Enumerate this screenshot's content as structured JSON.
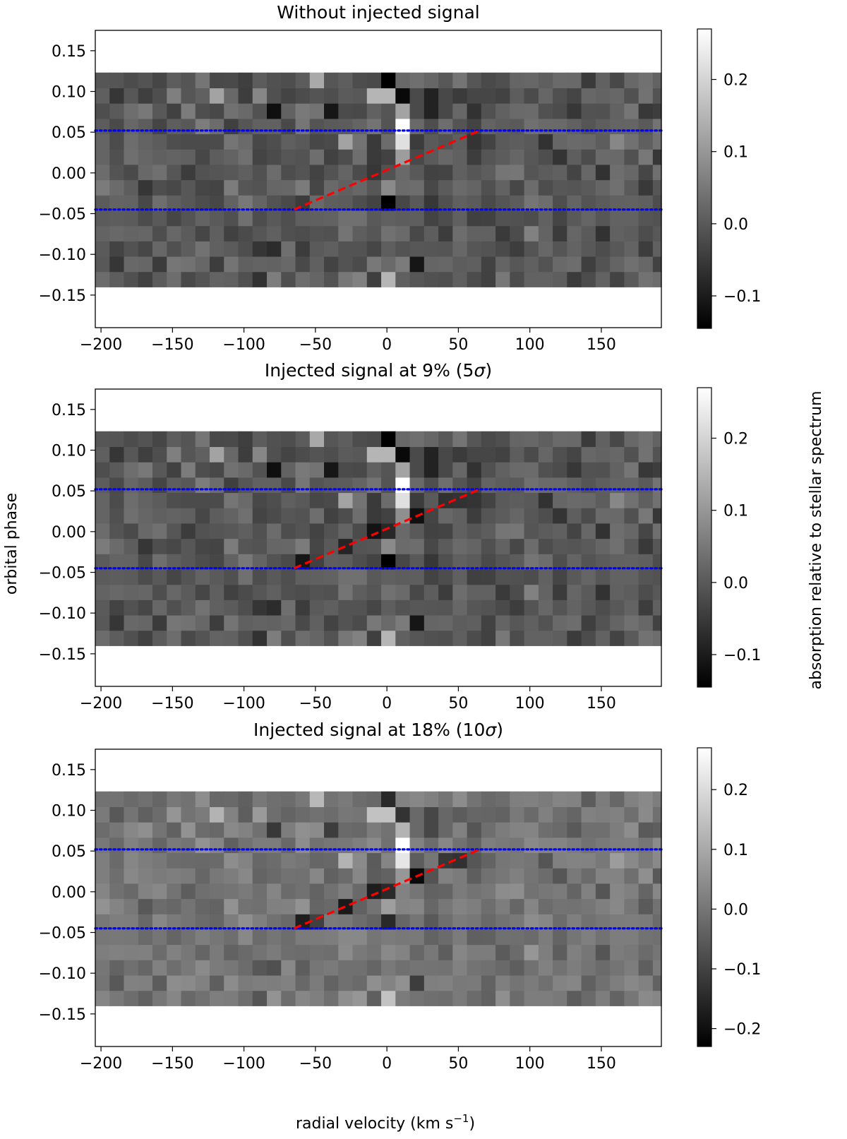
{
  "figure": {
    "ylabel": "orbital phase",
    "xlabel_main": "radial velocity  (km s",
    "xlabel_sup": "−1",
    "xlabel_close": ")",
    "colorbar_label": "absorption relative to stellar spectrum"
  },
  "chart_data": [
    {
      "type": "heatmap",
      "title_pre": "Without injected signal",
      "title_math": "",
      "title_post": "",
      "xlim": [
        -204,
        192
      ],
      "ylim": [
        -0.19,
        0.175
      ],
      "xticks": [
        -200,
        -150,
        -100,
        -50,
        0,
        50,
        100,
        150
      ],
      "xtick_labels": [
        "−200",
        "−150",
        "−100",
        "−50",
        "0",
        "50",
        "100",
        "150"
      ],
      "yticks": [
        0.15,
        0.1,
        0.05,
        0.0,
        -0.05,
        -0.1,
        -0.15
      ],
      "ytick_labels": [
        "0.15",
        "0.10",
        "0.05",
        "0.00",
        "−0.05",
        "−0.10",
        "−0.15"
      ],
      "grid": false,
      "colormap": "gray",
      "color_range": [
        -0.145,
        0.27
      ],
      "colorbar_ticks": [
        0.2,
        0.1,
        0.0,
        -0.1
      ],
      "colorbar_tick_labels": [
        "0.2",
        "0.1",
        "0.0",
        "−0.1"
      ],
      "injected_strength": 0,
      "phase_window": [
        -0.045,
        0.052
      ],
      "trail_line": {
        "x": [
          -65,
          65
        ],
        "y": [
          -0.045,
          0.052
        ],
        "color": "#ff0000",
        "style": "dashed"
      },
      "window_line_color": "#0000ff"
    },
    {
      "type": "heatmap",
      "title_pre": "Injected signal at 9% (5",
      "title_math": "σ",
      "title_post": ")",
      "xlim": [
        -204,
        192
      ],
      "ylim": [
        -0.19,
        0.175
      ],
      "xticks": [
        -200,
        -150,
        -100,
        -50,
        0,
        50,
        100,
        150
      ],
      "xtick_labels": [
        "−200",
        "−150",
        "−100",
        "−50",
        "0",
        "50",
        "100",
        "150"
      ],
      "yticks": [
        0.15,
        0.1,
        0.05,
        0.0,
        -0.05,
        -0.1,
        -0.15
      ],
      "ytick_labels": [
        "0.15",
        "0.10",
        "0.05",
        "0.00",
        "−0.05",
        "−0.10",
        "−0.15"
      ],
      "grid": false,
      "colormap": "gray",
      "color_range": [
        -0.145,
        0.27
      ],
      "colorbar_ticks": [
        0.2,
        0.1,
        0.0,
        -0.1
      ],
      "colorbar_tick_labels": [
        "0.2",
        "0.1",
        "0.0",
        "−0.1"
      ],
      "injected_strength": 0.09,
      "phase_window": [
        -0.045,
        0.052
      ],
      "trail_line": {
        "x": [
          -65,
          65
        ],
        "y": [
          -0.045,
          0.052
        ],
        "color": "#ff0000",
        "style": "dashed"
      },
      "window_line_color": "#0000ff"
    },
    {
      "type": "heatmap",
      "title_pre": "Injected signal at 18% (10",
      "title_math": "σ",
      "title_post": ")",
      "xlim": [
        -204,
        192
      ],
      "ylim": [
        -0.19,
        0.175
      ],
      "xticks": [
        -200,
        -150,
        -100,
        -50,
        0,
        50,
        100,
        150
      ],
      "xtick_labels": [
        "−200",
        "−150",
        "−100",
        "−50",
        "0",
        "50",
        "100",
        "150"
      ],
      "yticks": [
        0.15,
        0.1,
        0.05,
        0.0,
        -0.05,
        -0.1,
        -0.15
      ],
      "ytick_labels": [
        "0.15",
        "0.10",
        "0.05",
        "0.00",
        "−0.05",
        "−0.10",
        "−0.15"
      ],
      "grid": false,
      "colormap": "gray",
      "color_range": [
        -0.23,
        0.27
      ],
      "colorbar_ticks": [
        0.2,
        0.1,
        0.0,
        -0.1,
        -0.2
      ],
      "colorbar_tick_labels": [
        "0.2",
        "0.1",
        "0.0",
        "−0.1",
        "−0.2"
      ],
      "injected_strength": 0.18,
      "phase_window": [
        -0.045,
        0.052
      ],
      "trail_line": {
        "x": [
          -65,
          65
        ],
        "y": [
          -0.045,
          0.052
        ],
        "color": "#ff0000",
        "style": "dashed"
      },
      "window_line_color": "#0000ff"
    }
  ]
}
